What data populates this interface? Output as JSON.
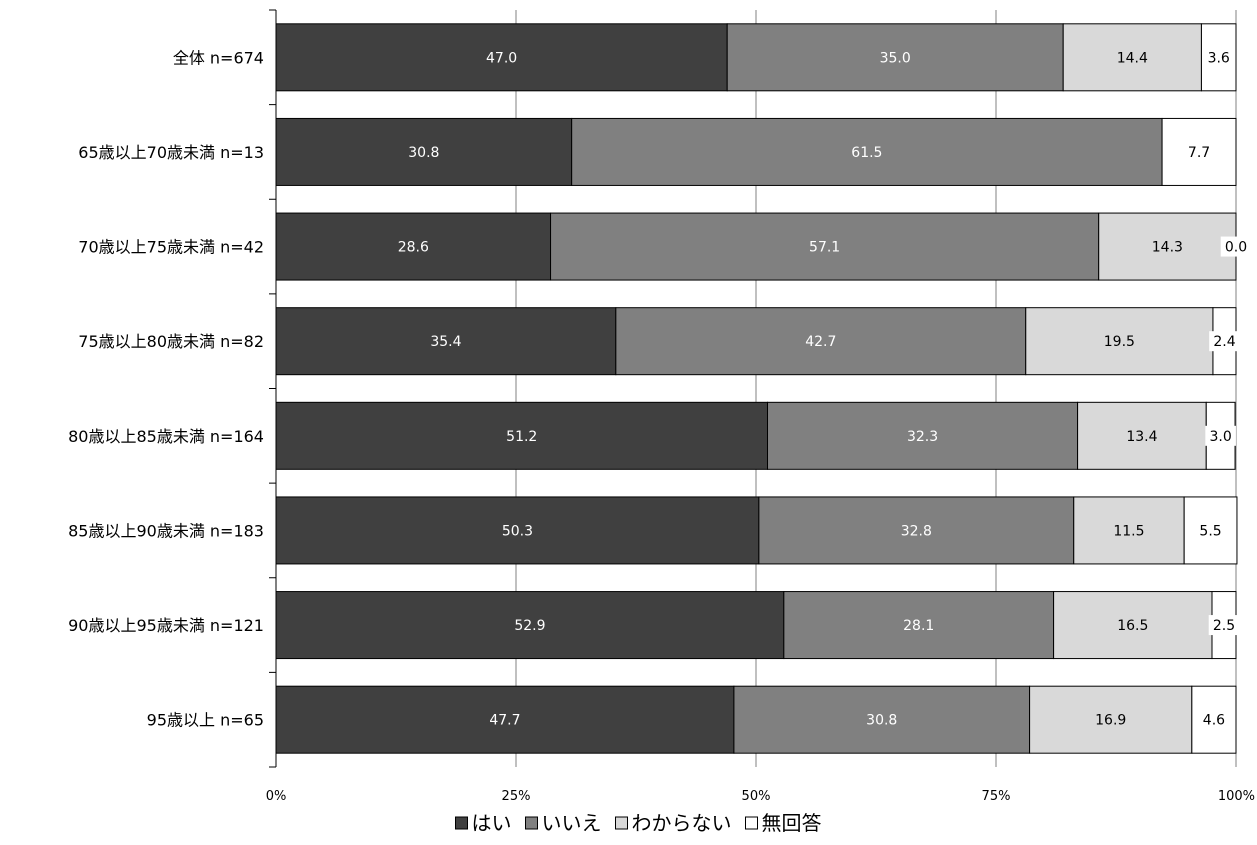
{
  "chart_data": {
    "type": "bar",
    "orientation": "horizontal",
    "stacked": true,
    "percent": true,
    "xlim": [
      0,
      100
    ],
    "xticks": [
      "0%",
      "25%",
      "50%",
      "75%",
      "100%"
    ],
    "grid": true,
    "legend_position": "bottom",
    "categories": [
      "全体 n=674",
      "65歳以上70歳未満 n=13",
      "70歳以上75歳未満 n=42",
      "75歳以上80歳未満 n=82",
      "80歳以上85歳未満 n=164",
      "85歳以上90歳未満 n=183",
      "90歳以上95歳未満 n=121",
      "95歳以上 n=65"
    ],
    "series": [
      {
        "name": "はい",
        "color": "#404040",
        "text_color": "#ffffff",
        "values": [
          47.0,
          30.8,
          28.6,
          35.4,
          51.2,
          50.3,
          52.9,
          47.7
        ],
        "labels": [
          "47.0",
          "30.8",
          "28.6",
          "35.4",
          "51.2",
          "50.3",
          "52.9",
          "47.7"
        ]
      },
      {
        "name": "いいえ",
        "color": "#808080",
        "text_color": "#ffffff",
        "values": [
          35.0,
          61.5,
          57.1,
          42.7,
          32.3,
          32.8,
          28.1,
          30.8
        ],
        "labels": [
          "35.0",
          "61.5",
          "57.1",
          "42.7",
          "32.3",
          "32.8",
          "28.1",
          "30.8"
        ]
      },
      {
        "name": "わからない",
        "color": "#d9d9d9",
        "text_color": "#000000",
        "values": [
          14.4,
          0,
          14.3,
          19.5,
          13.4,
          11.5,
          16.5,
          16.9
        ],
        "labels": [
          "14.4",
          "",
          "14.3",
          "19.5",
          "13.4",
          "11.5",
          "16.5",
          "16.9"
        ]
      },
      {
        "name": "無回答",
        "color": "#ffffff",
        "text_color": "#000000",
        "values": [
          3.6,
          7.7,
          0.0,
          2.4,
          3.0,
          5.5,
          2.5,
          4.6
        ],
        "labels": [
          "3.6",
          "7.7",
          "0.0",
          "2.4",
          "3.0",
          "5.5",
          "2.5",
          "4.6"
        ]
      }
    ]
  }
}
